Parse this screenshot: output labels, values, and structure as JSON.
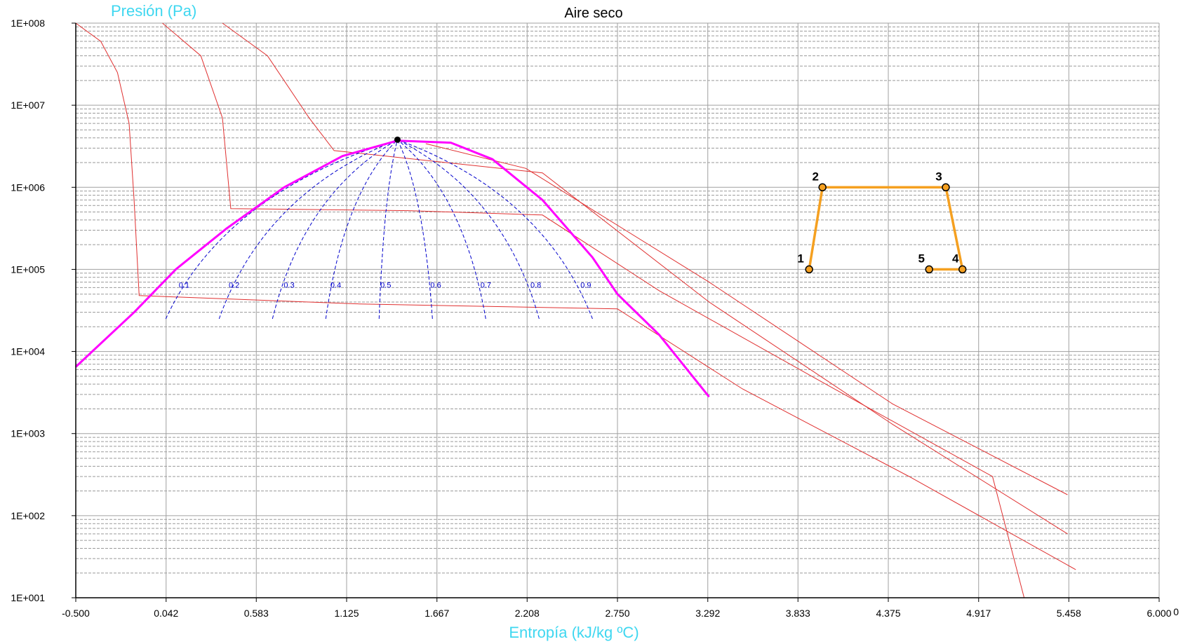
{
  "chart_data": {
    "type": "line",
    "title": "Aire seco",
    "xlabel": "Entropía (kJ/kg ºC)",
    "ylabel": "Presión (Pa)",
    "y_scale": "log",
    "xlim": [
      -0.5,
      6.0
    ],
    "ylim": [
      10,
      100000000
    ],
    "x_ticks": [
      "-0.500",
      "0.042",
      "0.583",
      "1.125",
      "1.667",
      "2.208",
      "2.750",
      "3.292",
      "3.833",
      "4.375",
      "4.917",
      "5.458",
      "6.000"
    ],
    "x_tick_extra": "0",
    "y_ticks": [
      "1E+008",
      "1E+007",
      "1E+006",
      "1E+005",
      "1E+004",
      "1E+003",
      "1E+002",
      "1E+001"
    ],
    "grid": true,
    "saturation_dome": {
      "color": "#ff00ff",
      "points": [
        [
          -0.5,
          6500
        ],
        [
          -0.15,
          30000
        ],
        [
          0.1,
          100000
        ],
        [
          0.4,
          310000
        ],
        [
          0.75,
          1000000
        ],
        [
          1.1,
          2400000
        ],
        [
          1.43,
          3700000
        ],
        [
          1.75,
          3500000
        ],
        [
          2.0,
          2200000
        ],
        [
          2.3,
          700000
        ],
        [
          2.6,
          140000
        ],
        [
          2.75,
          50000
        ],
        [
          3.0,
          16000
        ],
        [
          3.3,
          2800
        ]
      ]
    },
    "critical_point": [
      1.43,
      3800000
    ],
    "quality_lines": {
      "color": "#0000cc",
      "labels": [
        "0.1",
        "0.2",
        "0.3",
        "0.4",
        "0.5",
        "0.6",
        "0.7",
        "0.8",
        "0.9"
      ],
      "base_x": [
        0.04,
        0.36,
        0.68,
        1.0,
        1.32,
        1.64,
        1.96,
        2.28,
        2.6
      ],
      "label_x": [
        0.15,
        0.45,
        0.78,
        1.06,
        1.36,
        1.66,
        1.96,
        2.26,
        2.56
      ],
      "label_y": 60000,
      "base_y": 25000
    },
    "isotherms": {
      "color": "#e03030",
      "series": [
        {
          "values": [
            [
              -0.5,
              100000000
            ],
            [
              -0.35,
              60000000
            ],
            [
              -0.25,
              25000000
            ],
            [
              -0.18,
              6000000
            ],
            [
              -0.15,
              700000
            ],
            [
              -0.12,
              48000
            ],
            [
              1.2,
              38000
            ],
            [
              2.75,
              33000
            ],
            [
              3.5,
              3500
            ],
            [
              4.5,
              300
            ],
            [
              5.5,
              22
            ]
          ]
        },
        {
          "values": [
            [
              0.02,
              100000000
            ],
            [
              0.25,
              40000000
            ],
            [
              0.38,
              7000000
            ],
            [
              0.43,
              550000
            ],
            [
              1.5,
              520000
            ],
            [
              2.3,
              460000
            ],
            [
              3.0,
              55000
            ],
            [
              4.0,
              4000
            ],
            [
              5.0,
              300
            ],
            [
              5.19,
              10
            ]
          ]
        },
        {
          "values": [
            [
              0.38,
              100000000
            ],
            [
              0.65,
              40000000
            ],
            [
              0.9,
              7000000
            ],
            [
              1.05,
              2800000
            ],
            [
              2.3,
              1500000
            ],
            [
              3.3,
              40000
            ],
            [
              4.4,
              1300
            ],
            [
              5.45,
              60
            ]
          ]
        },
        {
          "values": [
            [
              1.6,
              3400000
            ],
            [
              2.2,
              1700000
            ],
            [
              3.3,
              70000
            ],
            [
              4.4,
              2300
            ],
            [
              5.45,
              180
            ]
          ]
        }
      ]
    },
    "cycle": {
      "color": "#f5a020",
      "points": [
        {
          "label": "1",
          "s": 3.9,
          "p": 100000
        },
        {
          "label": "2",
          "s": 3.98,
          "p": 1000000
        },
        {
          "label": "3",
          "s": 4.72,
          "p": 1000000
        },
        {
          "label": "4",
          "s": 4.82,
          "p": 100000
        },
        {
          "label": "5",
          "s": 4.62,
          "p": 100000
        }
      ]
    }
  }
}
